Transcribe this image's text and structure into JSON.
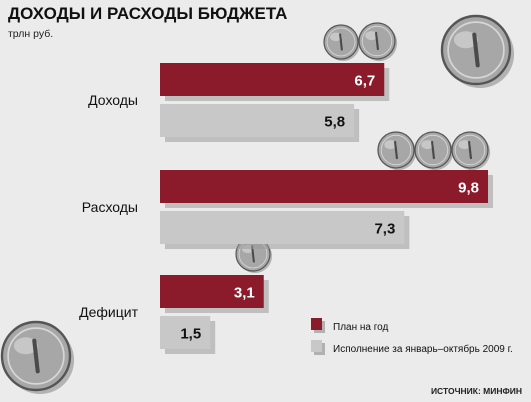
{
  "chart_data": {
    "type": "bar",
    "title": "ДОХОДЫ И РАСХОДЫ БЮДЖЕТА",
    "unit_label": "трлн руб.",
    "categories": [
      "Доходы",
      "Расходы",
      "Дефицит"
    ],
    "series": [
      {
        "name": "План на год",
        "values": [
          6.7,
          9.8,
          3.1
        ],
        "value_labels": [
          "6,7",
          "9,8",
          "3,1"
        ],
        "color": "#8b1a2b"
      },
      {
        "name": "Исполнение за январь–октябрь 2009 г.",
        "values": [
          5.8,
          7.3,
          1.5
        ],
        "value_labels": [
          "5,8",
          "7,3",
          "1,5"
        ],
        "color": "#c8c8c8"
      }
    ],
    "orientation": "horizontal",
    "xlim": [
      0,
      9.8
    ],
    "grid": false,
    "legend_position": "bottom-right",
    "source": "ИСТОЧНИК: МИНФИН",
    "decorations": [
      "coin-icon"
    ]
  }
}
